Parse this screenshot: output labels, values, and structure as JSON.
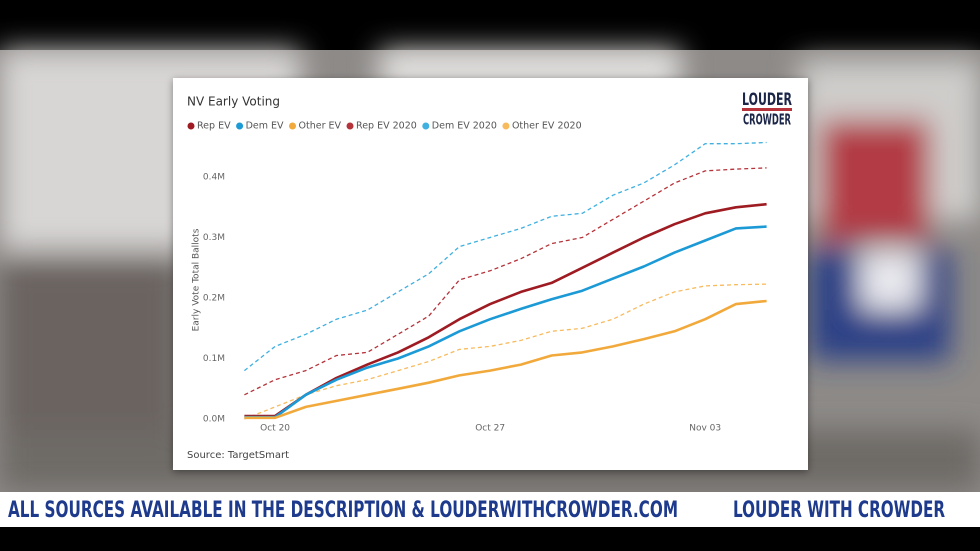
{
  "chart_data": {
    "type": "line",
    "title": "NV Early Voting",
    "y_label": "Early Vote Total Ballots",
    "source": "Source: TargetSmart",
    "categories": [
      null,
      "Oct 20",
      null,
      null,
      null,
      null,
      null,
      null,
      "Oct 27",
      null,
      null,
      null,
      null,
      null,
      null,
      "Nov 03",
      null,
      null
    ],
    "series": [
      {
        "name": "Rep EV",
        "color": "#9e1b22",
        "dashed": false,
        "values": [
          0.005,
          0.005,
          0.04,
          0.068,
          0.09,
          0.11,
          0.135,
          0.165,
          0.19,
          0.21,
          0.225,
          0.25,
          0.275,
          0.3,
          0.322,
          0.34,
          0.35,
          0.355
        ]
      },
      {
        "name": "Dem EV",
        "color": "#1c9ad6",
        "dashed": false,
        "values": [
          0.003,
          0.003,
          0.04,
          0.065,
          0.085,
          0.1,
          0.12,
          0.145,
          0.165,
          0.182,
          0.198,
          0.212,
          0.232,
          0.252,
          0.275,
          0.295,
          0.315,
          0.318
        ]
      },
      {
        "name": "Other EV",
        "color": "#f2a93b",
        "dashed": false,
        "values": [
          0.002,
          0.002,
          0.02,
          0.03,
          0.04,
          0.05,
          0.06,
          0.072,
          0.08,
          0.09,
          0.105,
          0.11,
          0.12,
          0.132,
          0.145,
          0.165,
          0.19,
          0.195
        ]
      },
      {
        "name": "Rep EV 2020",
        "color": "#b5333a",
        "dashed": true,
        "values": [
          0.04,
          0.065,
          0.08,
          0.105,
          0.11,
          0.14,
          0.17,
          0.23,
          0.245,
          0.265,
          0.29,
          0.3,
          0.33,
          0.36,
          0.39,
          0.41,
          0.413,
          0.415
        ]
      },
      {
        "name": "Dem EV 2020",
        "color": "#3fb0e0",
        "dashed": true,
        "values": [
          0.08,
          0.12,
          0.14,
          0.165,
          0.18,
          0.21,
          0.24,
          0.285,
          0.3,
          0.315,
          0.335,
          0.34,
          0.37,
          0.39,
          0.42,
          0.455,
          0.455,
          0.457
        ]
      },
      {
        "name": "Other EV 2020",
        "color": "#f7bb5e",
        "dashed": true,
        "values": [
          0.0,
          0.02,
          0.04,
          0.055,
          0.065,
          0.08,
          0.095,
          0.115,
          0.12,
          0.13,
          0.145,
          0.15,
          0.165,
          0.19,
          0.21,
          0.22,
          0.222,
          0.223
        ]
      }
    ],
    "ylim": [
      0,
      0.46
    ],
    "yticks": [
      {
        "value": 0,
        "label": "0.0M"
      },
      {
        "value": 0.1,
        "label": "0.1M"
      },
      {
        "value": 0.2,
        "label": "0.2M"
      },
      {
        "value": 0.3,
        "label": "0.3M"
      },
      {
        "value": 0.4,
        "label": "0.4M"
      }
    ],
    "grid": false
  },
  "logo": {
    "line1": "LOUDER",
    "line2": "CROWDER"
  },
  "banner": {
    "left": "ALL SOURCES AVAILABLE IN THE DESCRIPTION & LOUDERWITHCROWDER.COM",
    "right": "LOUDER WITH CROWDER"
  }
}
